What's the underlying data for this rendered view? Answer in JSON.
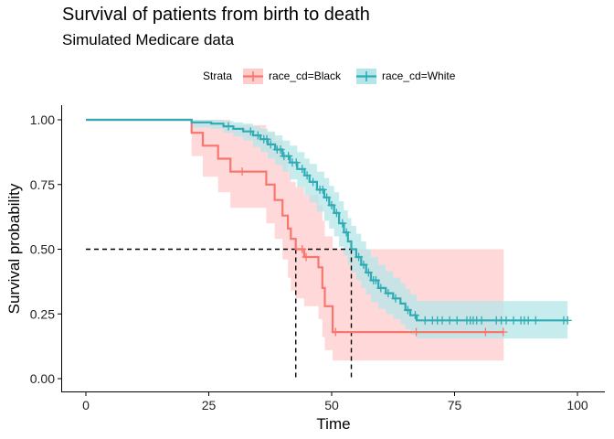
{
  "chart_data": {
    "type": "line",
    "title": "Survival of patients from birth to death",
    "subtitle": "Simulated Medicare data",
    "xlabel": "Time",
    "ylabel": "Survival probability",
    "xlim": [
      0,
      100
    ],
    "ylim": [
      0,
      1
    ],
    "x_ticks": [
      0,
      25,
      50,
      75,
      100
    ],
    "y_ticks": [
      0.0,
      0.25,
      0.5,
      0.75,
      1.0
    ],
    "x_tick_labels": [
      "0",
      "25",
      "50",
      "75",
      "100"
    ],
    "y_tick_labels": [
      "0.00",
      "0.25",
      "0.50",
      "0.75",
      "1.00"
    ],
    "grid": false,
    "legend": {
      "title": "Strata",
      "position": "top"
    },
    "median_line": {
      "y": 0.5,
      "x_medians": [
        42.7,
        54.0
      ]
    },
    "series": [
      {
        "name": "race_cd=Black",
        "color": "#F8766D",
        "band_color": "#FFCCCC",
        "steps": [
          [
            0,
            1.0
          ],
          [
            21.5,
            0.95
          ],
          [
            23.8,
            0.9
          ],
          [
            26.9,
            0.85
          ],
          [
            29.4,
            0.8
          ],
          [
            36.7,
            0.75
          ],
          [
            38.4,
            0.69
          ],
          [
            40.0,
            0.63
          ],
          [
            41.1,
            0.58
          ],
          [
            41.7,
            0.54
          ],
          [
            42.7,
            0.5
          ],
          [
            44.4,
            0.47
          ],
          [
            47.3,
            0.43
          ],
          [
            48.1,
            0.35
          ],
          [
            48.6,
            0.28
          ],
          [
            50.2,
            0.18
          ],
          [
            85.0,
            0.18
          ]
        ],
        "lower": [
          [
            0,
            1.0
          ],
          [
            21.5,
            0.86
          ],
          [
            23.8,
            0.78
          ],
          [
            26.9,
            0.72
          ],
          [
            29.4,
            0.66
          ],
          [
            36.7,
            0.6
          ],
          [
            38.4,
            0.54
          ],
          [
            40.0,
            0.46
          ],
          [
            41.1,
            0.39
          ],
          [
            41.7,
            0.34
          ],
          [
            42.7,
            0.31
          ],
          [
            44.4,
            0.28
          ],
          [
            47.3,
            0.23
          ],
          [
            48.1,
            0.16
          ],
          [
            48.6,
            0.11
          ],
          [
            50.2,
            0.07
          ],
          [
            85.0,
            0.07
          ]
        ],
        "upper": [
          [
            0,
            1.0
          ],
          [
            21.5,
            1.0
          ],
          [
            29.4,
            0.98
          ],
          [
            36.7,
            0.95
          ],
          [
            38.4,
            0.92
          ],
          [
            40.0,
            0.86
          ],
          [
            41.1,
            0.8
          ],
          [
            41.7,
            0.76
          ],
          [
            42.7,
            0.74
          ],
          [
            44.4,
            0.71
          ],
          [
            47.3,
            0.67
          ],
          [
            48.1,
            0.61
          ],
          [
            48.6,
            0.55
          ],
          [
            50.2,
            0.5
          ],
          [
            85.0,
            0.5
          ]
        ],
        "censor_x": [
          31.8,
          44.0,
          44.8,
          50.8,
          67.2,
          81.3,
          84.9
        ]
      },
      {
        "name": "race_cd=White",
        "color": "#00BFC4",
        "display_color": "#2EACB5",
        "band_color": "#B4E5E8",
        "steps": [
          [
            0,
            1.0
          ],
          [
            21.5,
            0.99
          ],
          [
            25.5,
            0.985
          ],
          [
            28.0,
            0.975
          ],
          [
            30.0,
            0.965
          ],
          [
            32.0,
            0.955
          ],
          [
            34.0,
            0.94
          ],
          [
            35.5,
            0.925
          ],
          [
            37.0,
            0.905
          ],
          [
            38.5,
            0.885
          ],
          [
            40.0,
            0.86
          ],
          [
            41.5,
            0.835
          ],
          [
            43.0,
            0.81
          ],
          [
            44.5,
            0.785
          ],
          [
            45.5,
            0.76
          ],
          [
            47.0,
            0.73
          ],
          [
            48.5,
            0.7
          ],
          [
            49.5,
            0.67
          ],
          [
            50.5,
            0.64
          ],
          [
            51.5,
            0.6
          ],
          [
            52.5,
            0.565
          ],
          [
            53.3,
            0.53
          ],
          [
            54.0,
            0.5
          ],
          [
            55.0,
            0.47
          ],
          [
            56.0,
            0.44
          ],
          [
            57.0,
            0.41
          ],
          [
            58.0,
            0.38
          ],
          [
            59.5,
            0.35
          ],
          [
            61.0,
            0.33
          ],
          [
            62.5,
            0.31
          ],
          [
            64.0,
            0.29
          ],
          [
            65.0,
            0.265
          ],
          [
            66.0,
            0.245
          ],
          [
            67.3,
            0.225
          ],
          [
            98.0,
            0.225
          ]
        ],
        "lower": [
          [
            0,
            1.0
          ],
          [
            21.5,
            0.97
          ],
          [
            25.5,
            0.965
          ],
          [
            28.0,
            0.95
          ],
          [
            30.0,
            0.935
          ],
          [
            32.0,
            0.92
          ],
          [
            34.0,
            0.895
          ],
          [
            35.5,
            0.875
          ],
          [
            37.0,
            0.85
          ],
          [
            38.5,
            0.825
          ],
          [
            40.0,
            0.8
          ],
          [
            41.5,
            0.77
          ],
          [
            43.0,
            0.74
          ],
          [
            44.5,
            0.71
          ],
          [
            45.5,
            0.68
          ],
          [
            47.0,
            0.645
          ],
          [
            48.5,
            0.61
          ],
          [
            49.5,
            0.58
          ],
          [
            50.5,
            0.55
          ],
          [
            51.5,
            0.51
          ],
          [
            52.5,
            0.475
          ],
          [
            53.3,
            0.44
          ],
          [
            54.0,
            0.41
          ],
          [
            55.0,
            0.38
          ],
          [
            56.0,
            0.35
          ],
          [
            57.0,
            0.325
          ],
          [
            58.0,
            0.295
          ],
          [
            59.5,
            0.27
          ],
          [
            61.0,
            0.25
          ],
          [
            62.5,
            0.23
          ],
          [
            64.0,
            0.21
          ],
          [
            65.0,
            0.19
          ],
          [
            66.0,
            0.17
          ],
          [
            67.3,
            0.155
          ],
          [
            98.0,
            0.155
          ]
        ],
        "upper": [
          [
            0,
            1.0
          ],
          [
            21.5,
            1.0
          ],
          [
            28.0,
            0.995
          ],
          [
            30.0,
            0.99
          ],
          [
            32.0,
            0.985
          ],
          [
            34.0,
            0.975
          ],
          [
            35.5,
            0.965
          ],
          [
            37.0,
            0.955
          ],
          [
            38.5,
            0.94
          ],
          [
            40.0,
            0.92
          ],
          [
            41.5,
            0.9
          ],
          [
            43.0,
            0.875
          ],
          [
            44.5,
            0.85
          ],
          [
            45.5,
            0.83
          ],
          [
            47.0,
            0.8
          ],
          [
            48.5,
            0.775
          ],
          [
            49.5,
            0.745
          ],
          [
            50.5,
            0.72
          ],
          [
            51.5,
            0.685
          ],
          [
            52.5,
            0.65
          ],
          [
            53.3,
            0.62
          ],
          [
            54.0,
            0.59
          ],
          [
            55.0,
            0.56
          ],
          [
            56.0,
            0.53
          ],
          [
            57.0,
            0.5
          ],
          [
            58.0,
            0.47
          ],
          [
            59.5,
            0.44
          ],
          [
            61.0,
            0.415
          ],
          [
            62.5,
            0.39
          ],
          [
            64.0,
            0.37
          ],
          [
            65.0,
            0.345
          ],
          [
            66.0,
            0.325
          ],
          [
            67.3,
            0.3
          ],
          [
            98.0,
            0.3
          ]
        ],
        "censor_x": [
          29.0,
          33.5,
          35.0,
          36.2,
          36.8,
          37.6,
          38.9,
          39.6,
          40.3,
          41.2,
          42.0,
          42.8,
          44.0,
          45.0,
          46.2,
          47.6,
          48.2,
          49.0,
          50.0,
          51.0,
          52.2,
          53.0,
          55.5,
          56.5,
          57.5,
          58.5,
          59.0,
          60.0,
          61.5,
          63.0,
          65.5,
          67.0,
          69.0,
          70.5,
          71.5,
          72.5,
          74.0,
          75.5,
          77.5,
          78.2,
          78.8,
          79.5,
          80.5,
          83.5,
          84.5,
          85.5,
          87.0,
          88.5,
          89.2,
          90.0,
          91.5,
          97.2,
          98.0
        ]
      }
    ]
  }
}
